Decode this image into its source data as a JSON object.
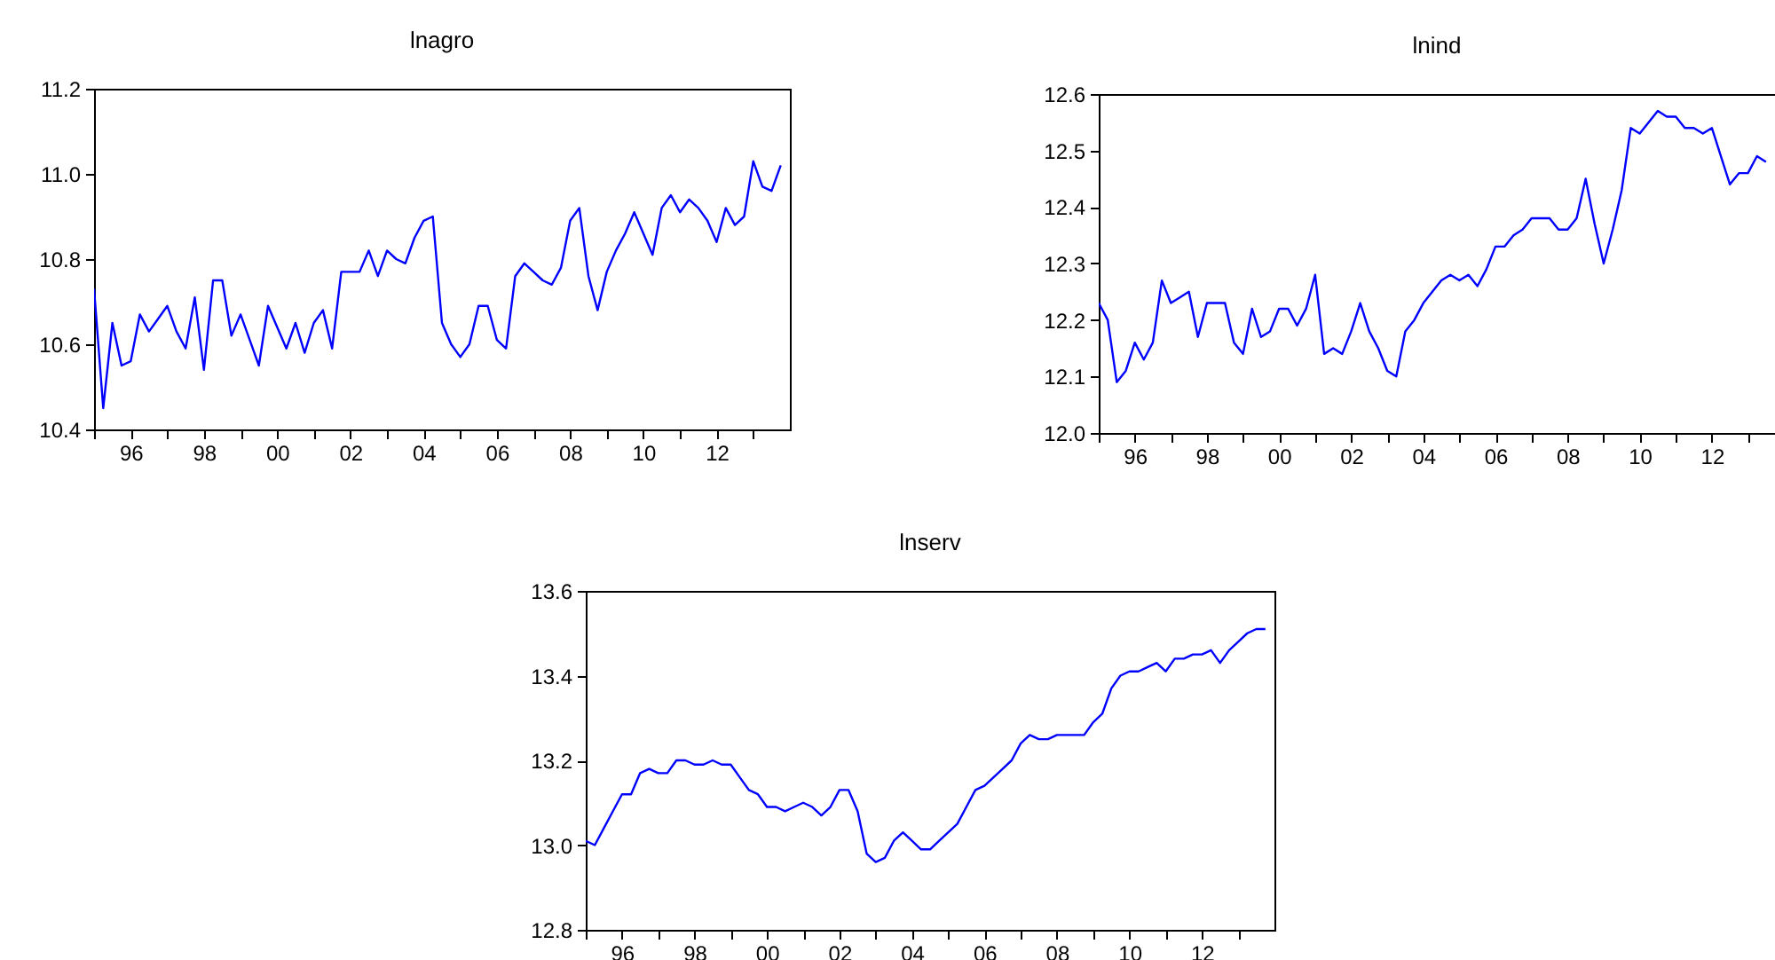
{
  "chart_data": [
    {
      "type": "line",
      "title": "lnagro",
      "xlim": [
        1995,
        2014
      ],
      "ylim": [
        10.4,
        11.2
      ],
      "yticks": [
        10.4,
        10.6,
        10.8,
        {
          "value": 11,
          "label": "11.0"
        },
        11.2
      ],
      "xticks": [
        {
          "value": 1995,
          "label": null
        },
        {
          "value": 1996,
          "label": "96"
        },
        {
          "value": 1997,
          "label": null
        },
        {
          "value": 1998,
          "label": "98"
        },
        {
          "value": 1999,
          "label": null
        },
        {
          "value": 2000,
          "label": "00"
        },
        {
          "value": 2001,
          "label": null
        },
        {
          "value": 2002,
          "label": "02"
        },
        {
          "value": 2003,
          "label": null
        },
        {
          "value": 2004,
          "label": "04"
        },
        {
          "value": 2005,
          "label": null
        },
        {
          "value": 2006,
          "label": "06"
        },
        {
          "value": 2007,
          "label": null
        },
        {
          "value": 2008,
          "label": "08"
        },
        {
          "value": 2009,
          "label": null
        },
        {
          "value": 2010,
          "label": "10"
        },
        {
          "value": 2011,
          "label": null
        },
        {
          "value": 2012,
          "label": "12"
        },
        {
          "value": 2013,
          "label": null
        }
      ],
      "x": [
        1995,
        1995.25,
        1995.5,
        1995.75,
        1996,
        1996.25,
        1996.5,
        1996.75,
        1997,
        1997.25,
        1997.5,
        1997.75,
        1998,
        1998.25,
        1998.5,
        1998.75,
        1999,
        1999.25,
        1999.5,
        1999.75,
        2000,
        2000.25,
        2000.5,
        2000.75,
        2001,
        2001.25,
        2001.5,
        2001.75,
        2002,
        2002.25,
        2002.5,
        2002.75,
        2003,
        2003.25,
        2003.5,
        2003.75,
        2004,
        2004.25,
        2004.5,
        2004.75,
        2005,
        2005.25,
        2005.5,
        2005.75,
        2006,
        2006.25,
        2006.5,
        2006.75,
        2007,
        2007.25,
        2007.5,
        2007.75,
        2008,
        2008.25,
        2008.5,
        2008.75,
        2009,
        2009.25,
        2009.5,
        2009.75,
        2010,
        2010.25,
        2010.5,
        2010.75,
        2011,
        2011.25,
        2011.5,
        2011.75,
        2012,
        2012.25,
        2012.5,
        2012.75,
        2013,
        2013.25,
        2013.5,
        2013.75
      ],
      "series": [
        {
          "color": "#0000ff",
          "values": [
            10.73,
            10.45,
            10.65,
            10.55,
            10.56,
            10.67,
            10.63,
            10.66,
            10.69,
            10.63,
            10.59,
            10.71,
            10.54,
            10.75,
            10.75,
            10.62,
            10.67,
            10.61,
            10.55,
            10.69,
            10.64,
            10.59,
            10.65,
            10.58,
            10.65,
            10.68,
            10.59,
            10.77,
            10.77,
            10.77,
            10.82,
            10.76,
            10.82,
            10.8,
            10.79,
            10.85,
            10.89,
            10.9,
            10.65,
            10.6,
            10.57,
            10.6,
            10.69,
            10.69,
            10.61,
            10.59,
            10.76,
            10.79,
            10.77,
            10.75,
            10.74,
            10.78,
            10.89,
            10.92,
            10.76,
            10.68,
            10.77,
            10.82,
            10.86,
            10.91,
            10.86,
            10.81,
            10.92,
            10.95,
            10.91,
            10.94,
            10.92,
            10.89,
            10.84,
            10.92,
            10.88,
            10.9,
            11.03,
            10.97,
            10.96,
            11.02
          ]
        }
      ]
    },
    {
      "type": "line",
      "title": "lnind",
      "xlim": [
        1995,
        2013.75
      ],
      "ylim": [
        12,
        12.6
      ],
      "yticks": [
        {
          "value": 12,
          "label": "12.0"
        },
        12.1,
        12.2,
        12.3,
        12.4,
        12.5,
        12.6
      ],
      "xticks": [
        {
          "value": 1995,
          "label": null
        },
        {
          "value": 1996,
          "label": "96"
        },
        {
          "value": 1997,
          "label": null
        },
        {
          "value": 1998,
          "label": "98"
        },
        {
          "value": 1999,
          "label": null
        },
        {
          "value": 2000,
          "label": "00"
        },
        {
          "value": 2001,
          "label": null
        },
        {
          "value": 2002,
          "label": "02"
        },
        {
          "value": 2003,
          "label": null
        },
        {
          "value": 2004,
          "label": "04"
        },
        {
          "value": 2005,
          "label": null
        },
        {
          "value": 2006,
          "label": "06"
        },
        {
          "value": 2007,
          "label": null
        },
        {
          "value": 2008,
          "label": "08"
        },
        {
          "value": 2009,
          "label": null
        },
        {
          "value": 2010,
          "label": "10"
        },
        {
          "value": 2011,
          "label": null
        },
        {
          "value": 2012,
          "label": "12"
        },
        {
          "value": 2013,
          "label": null
        }
      ],
      "x": [
        1995,
        1995.25,
        1995.5,
        1995.75,
        1996,
        1996.25,
        1996.5,
        1996.75,
        1997,
        1997.25,
        1997.5,
        1997.75,
        1998,
        1998.25,
        1998.5,
        1998.75,
        1999,
        1999.25,
        1999.5,
        1999.75,
        2000,
        2000.25,
        2000.5,
        2000.75,
        2001,
        2001.25,
        2001.5,
        2001.75,
        2002,
        2002.25,
        2002.5,
        2002.75,
        2003,
        2003.25,
        2003.5,
        2003.75,
        2004,
        2004.25,
        2004.5,
        2004.75,
        2005,
        2005.25,
        2005.5,
        2005.75,
        2006,
        2006.25,
        2006.5,
        2006.75,
        2007,
        2007.25,
        2007.5,
        2007.75,
        2008,
        2008.25,
        2008.5,
        2008.75,
        2009,
        2009.25,
        2009.5,
        2009.75,
        2010,
        2010.25,
        2010.5,
        2010.75,
        2011,
        2011.25,
        2011.5,
        2011.75,
        2012,
        2012.25,
        2012.5,
        2012.75,
        2013,
        2013.25,
        2013.5
      ],
      "series": [
        {
          "color": "#0000ff",
          "values": [
            12.23,
            12.2,
            12.09,
            12.11,
            12.16,
            12.13,
            12.16,
            12.27,
            12.23,
            12.24,
            12.25,
            12.17,
            12.23,
            12.23,
            12.23,
            12.16,
            12.14,
            12.22,
            12.17,
            12.18,
            12.22,
            12.22,
            12.19,
            12.22,
            12.28,
            12.14,
            12.15,
            12.14,
            12.18,
            12.23,
            12.18,
            12.15,
            12.11,
            12.1,
            12.18,
            12.2,
            12.23,
            12.25,
            12.27,
            12.28,
            12.27,
            12.28,
            12.26,
            12.29,
            12.33,
            12.33,
            12.35,
            12.36,
            12.38,
            12.38,
            12.38,
            12.36,
            12.36,
            12.38,
            12.45,
            12.37,
            12.3,
            12.36,
            12.43,
            12.54,
            12.53,
            12.55,
            12.57,
            12.56,
            12.56,
            12.54,
            12.54,
            12.53,
            12.54,
            12.49,
            12.44,
            12.46,
            12.46,
            12.49,
            12.48
          ]
        }
      ]
    },
    {
      "type": "line",
      "title": "lnserv",
      "xlim": [
        1995,
        2014
      ],
      "ylim": [
        12.8,
        13.6
      ],
      "yticks": [
        12.8,
        {
          "value": 13,
          "label": "13.0"
        },
        13.2,
        13.4,
        13.6
      ],
      "xticks": [
        {
          "value": 1995,
          "label": null
        },
        {
          "value": 1996,
          "label": "96"
        },
        {
          "value": 1997,
          "label": null
        },
        {
          "value": 1998,
          "label": "98"
        },
        {
          "value": 1999,
          "label": null
        },
        {
          "value": 2000,
          "label": "00"
        },
        {
          "value": 2001,
          "label": null
        },
        {
          "value": 2002,
          "label": "02"
        },
        {
          "value": 2003,
          "label": null
        },
        {
          "value": 2004,
          "label": "04"
        },
        {
          "value": 2005,
          "label": null
        },
        {
          "value": 2006,
          "label": "06"
        },
        {
          "value": 2007,
          "label": null
        },
        {
          "value": 2008,
          "label": "08"
        },
        {
          "value": 2009,
          "label": null
        },
        {
          "value": 2010,
          "label": "10"
        },
        {
          "value": 2011,
          "label": null
        },
        {
          "value": 2012,
          "label": "12"
        },
        {
          "value": 2013,
          "label": null
        }
      ],
      "x": [
        1995,
        1995.25,
        1995.5,
        1995.75,
        1996,
        1996.25,
        1996.5,
        1996.75,
        1997,
        1997.25,
        1997.5,
        1997.75,
        1998,
        1998.25,
        1998.5,
        1998.75,
        1999,
        1999.25,
        1999.5,
        1999.75,
        2000,
        2000.25,
        2000.5,
        2000.75,
        2001,
        2001.25,
        2001.5,
        2001.75,
        2002,
        2002.25,
        2002.5,
        2002.75,
        2003,
        2003.25,
        2003.5,
        2003.75,
        2004,
        2004.25,
        2004.5,
        2004.75,
        2005,
        2005.25,
        2005.5,
        2005.75,
        2006,
        2006.25,
        2006.5,
        2006.75,
        2007,
        2007.25,
        2007.5,
        2007.75,
        2008,
        2008.25,
        2008.5,
        2008.75,
        2009,
        2009.25,
        2009.5,
        2009.75,
        2010,
        2010.25,
        2010.5,
        2010.75,
        2011,
        2011.25,
        2011.5,
        2011.75,
        2012,
        2012.25,
        2012.5,
        2012.75,
        2013,
        2013.25,
        2013.5,
        2013.75
      ],
      "series": [
        {
          "color": "#0000ff",
          "values": [
            13.01,
            13.0,
            13.04,
            13.08,
            13.12,
            13.12,
            13.17,
            13.18,
            13.17,
            13.17,
            13.2,
            13.2,
            13.19,
            13.19,
            13.2,
            13.19,
            13.19,
            13.16,
            13.13,
            13.12,
            13.09,
            13.09,
            13.08,
            13.09,
            13.1,
            13.09,
            13.07,
            13.09,
            13.13,
            13.13,
            13.08,
            12.98,
            12.96,
            12.97,
            13.01,
            13.03,
            13.01,
            12.99,
            12.99,
            13.01,
            13.03,
            13.05,
            13.09,
            13.13,
            13.14,
            13.16,
            13.18,
            13.2,
            13.24,
            13.26,
            13.25,
            13.25,
            13.26,
            13.26,
            13.26,
            13.26,
            13.29,
            13.31,
            13.37,
            13.4,
            13.41,
            13.41,
            13.42,
            13.43,
            13.41,
            13.44,
            13.44,
            13.45,
            13.45,
            13.46,
            13.43,
            13.46,
            13.48,
            13.5,
            13.51,
            13.51
          ]
        }
      ]
    }
  ]
}
